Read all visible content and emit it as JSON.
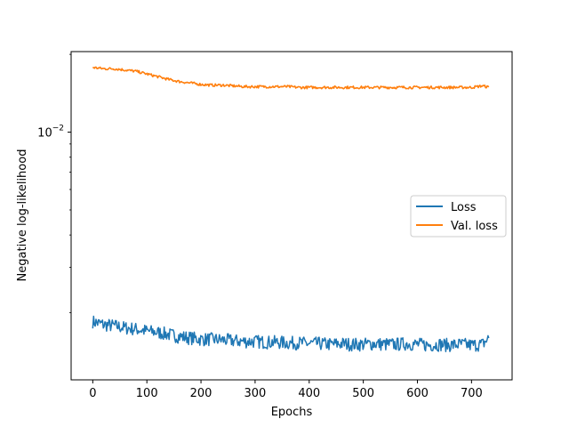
{
  "chart_data": {
    "type": "line",
    "title": "",
    "xlabel": "Epochs",
    "ylabel": "Negative log-likelihood",
    "xlim": [
      -40,
      775
    ],
    "ylim": [
      0.0011,
      0.0205
    ],
    "yscale": "log",
    "x_ticks": [
      0,
      100,
      200,
      300,
      400,
      500,
      600,
      700
    ],
    "y_ticks": [
      {
        "value": 0.01,
        "base": "10",
        "exp": "−2"
      }
    ],
    "grid": false,
    "legend_position": "center-right",
    "series": [
      {
        "name": "Loss",
        "color": "#1f77b4",
        "x": [
          0,
          20,
          40,
          60,
          80,
          100,
          120,
          140,
          160,
          180,
          200,
          220,
          240,
          260,
          280,
          300,
          320,
          340,
          360,
          380,
          400,
          420,
          440,
          460,
          480,
          500,
          520,
          540,
          560,
          580,
          600,
          620,
          640,
          660,
          680,
          700,
          720,
          733
        ],
        "values": [
          0.00185,
          0.0018,
          0.00178,
          0.00175,
          0.00173,
          0.0017,
          0.00168,
          0.00165,
          0.00162,
          0.0016,
          0.00158,
          0.00158,
          0.00157,
          0.00156,
          0.00155,
          0.00155,
          0.00154,
          0.00154,
          0.00153,
          0.00153,
          0.00152,
          0.00152,
          0.00151,
          0.00152,
          0.00151,
          0.00151,
          0.00152,
          0.00151,
          0.00151,
          0.00152,
          0.00151,
          0.0015,
          0.00151,
          0.0015,
          0.00151,
          0.0015,
          0.00151,
          0.0016
        ],
        "noise": 0.06
      },
      {
        "name": "Val. loss",
        "color": "#ff7f0e",
        "x": [
          0,
          20,
          40,
          60,
          80,
          100,
          120,
          140,
          160,
          180,
          200,
          220,
          240,
          260,
          280,
          300,
          320,
          340,
          360,
          380,
          400,
          420,
          440,
          460,
          480,
          500,
          520,
          540,
          560,
          580,
          600,
          620,
          640,
          660,
          680,
          700,
          720,
          733
        ],
        "values": [
          0.0178,
          0.0176,
          0.0176,
          0.0174,
          0.0172,
          0.0168,
          0.0164,
          0.016,
          0.0157,
          0.0155,
          0.0153,
          0.0152,
          0.0152,
          0.0151,
          0.015,
          0.015,
          0.015,
          0.015,
          0.015,
          0.0149,
          0.0149,
          0.0149,
          0.0149,
          0.0149,
          0.0149,
          0.0149,
          0.0149,
          0.0149,
          0.0149,
          0.0149,
          0.0149,
          0.0149,
          0.0149,
          0.0149,
          0.0149,
          0.0149,
          0.0151,
          0.0149
        ],
        "noise": 0.012
      }
    ]
  }
}
